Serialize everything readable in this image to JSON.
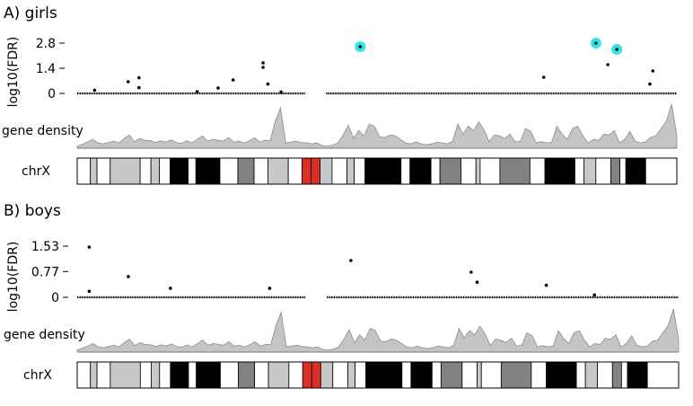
{
  "chart_data": [
    {
      "type": "scatter",
      "title": "A) girls",
      "ylabel": "log10(FDR)",
      "ylim": [
        0,
        2.8
      ],
      "yticks": [
        "2.8",
        "1.4",
        "0"
      ],
      "track_labels": {
        "density": "gene density",
        "ideogram": "chrX"
      },
      "highlight_color": "#2ee6e6",
      "points": [
        {
          "x": 0.029,
          "y": 0.18
        },
        {
          "x": 0.085,
          "y": 0.65
        },
        {
          "x": 0.103,
          "y": 0.87
        },
        {
          "x": 0.103,
          "y": 0.32
        },
        {
          "x": 0.2,
          "y": 0.1
        },
        {
          "x": 0.235,
          "y": 0.3
        },
        {
          "x": 0.26,
          "y": 0.75
        },
        {
          "x": 0.31,
          "y": 1.7
        },
        {
          "x": 0.31,
          "y": 1.45
        },
        {
          "x": 0.318,
          "y": 0.52
        },
        {
          "x": 0.34,
          "y": 0.08
        },
        {
          "x": 0.472,
          "y": 2.6,
          "highlight": true
        },
        {
          "x": 0.778,
          "y": 0.9
        },
        {
          "x": 0.865,
          "y": 2.8,
          "highlight": true
        },
        {
          "x": 0.885,
          "y": 1.6
        },
        {
          "x": 0.9,
          "y": 2.45,
          "highlight": true
        },
        {
          "x": 0.955,
          "y": 0.52
        },
        {
          "x": 0.96,
          "y": 1.25
        }
      ]
    },
    {
      "type": "scatter",
      "title": "B) boys",
      "ylabel": "log10(FDR)",
      "ylim": [
        0,
        1.53
      ],
      "yticks": [
        "1.53",
        "0.77",
        "0"
      ],
      "track_labels": {
        "density": "gene density",
        "ideogram": "chrX"
      },
      "points": [
        {
          "x": 0.02,
          "y": 1.5
        },
        {
          "x": 0.02,
          "y": 0.18
        },
        {
          "x": 0.085,
          "y": 0.62
        },
        {
          "x": 0.155,
          "y": 0.27
        },
        {
          "x": 0.32,
          "y": 0.27
        },
        {
          "x": 0.455,
          "y": 1.1
        },
        {
          "x": 0.655,
          "y": 0.75
        },
        {
          "x": 0.665,
          "y": 0.45
        },
        {
          "x": 0.78,
          "y": 0.36
        },
        {
          "x": 0.86,
          "y": 0.07
        }
      ]
    }
  ],
  "gene_density": [
    0.05,
    0.09,
    0.14,
    0.2,
    0.12,
    0.1,
    0.13,
    0.16,
    0.12,
    0.22,
    0.3,
    0.15,
    0.22,
    0.18,
    0.17,
    0.13,
    0.17,
    0.14,
    0.19,
    0.13,
    0.11,
    0.17,
    0.12,
    0.2,
    0.28,
    0.16,
    0.2,
    0.18,
    0.16,
    0.24,
    0.14,
    0.16,
    0.12,
    0.17,
    0.24,
    0.14,
    0.18,
    0.17,
    0.62,
    0.92,
    0.12,
    0.14,
    0.16,
    0.13,
    0.12,
    0.1,
    0.12,
    0.06,
    0.05,
    0.07,
    0.12,
    0.3,
    0.52,
    0.22,
    0.4,
    0.28,
    0.55,
    0.5,
    0.26,
    0.24,
    0.3,
    0.28,
    0.2,
    0.12,
    0.1,
    0.14,
    0.1,
    0.08,
    0.1,
    0.14,
    0.12,
    0.1,
    0.16,
    0.55,
    0.32,
    0.5,
    0.4,
    0.6,
    0.42,
    0.15,
    0.3,
    0.28,
    0.22,
    0.32,
    0.14,
    0.16,
    0.45,
    0.38,
    0.12,
    0.15,
    0.12,
    0.14,
    0.5,
    0.32,
    0.2,
    0.45,
    0.5,
    0.28,
    0.12,
    0.2,
    0.18,
    0.32,
    0.3,
    0.4,
    0.12,
    0.2,
    0.38,
    0.16,
    0.12,
    0.14,
    0.25,
    0.28,
    0.45,
    0.62,
    1.0,
    0.3
  ],
  "ideogram_bands": [
    {
      "start": 0.0,
      "end": 0.022,
      "stain": "gneg"
    },
    {
      "start": 0.022,
      "end": 0.033,
      "stain": "gpos25"
    },
    {
      "start": 0.033,
      "end": 0.055,
      "stain": "gneg"
    },
    {
      "start": 0.055,
      "end": 0.105,
      "stain": "gpos25"
    },
    {
      "start": 0.105,
      "end": 0.123,
      "stain": "gneg"
    },
    {
      "start": 0.123,
      "end": 0.137,
      "stain": "gpos25"
    },
    {
      "start": 0.137,
      "end": 0.155,
      "stain": "gneg"
    },
    {
      "start": 0.155,
      "end": 0.185,
      "stain": "gpos100"
    },
    {
      "start": 0.185,
      "end": 0.198,
      "stain": "gneg"
    },
    {
      "start": 0.198,
      "end": 0.238,
      "stain": "gpos100"
    },
    {
      "start": 0.238,
      "end": 0.268,
      "stain": "gneg"
    },
    {
      "start": 0.268,
      "end": 0.295,
      "stain": "gpos75"
    },
    {
      "start": 0.295,
      "end": 0.318,
      "stain": "gneg"
    },
    {
      "start": 0.318,
      "end": 0.352,
      "stain": "gpos25"
    },
    {
      "start": 0.352,
      "end": 0.375,
      "stain": "gneg"
    },
    {
      "start": 0.375,
      "end": 0.39,
      "stain": "acen"
    },
    {
      "start": 0.39,
      "end": 0.405,
      "stain": "acen"
    },
    {
      "start": 0.405,
      "end": 0.425,
      "stain": "gpos25"
    },
    {
      "start": 0.425,
      "end": 0.45,
      "stain": "gneg"
    },
    {
      "start": 0.45,
      "end": 0.462,
      "stain": "gpos25"
    },
    {
      "start": 0.462,
      "end": 0.48,
      "stain": "gneg"
    },
    {
      "start": 0.48,
      "end": 0.54,
      "stain": "gpos100"
    },
    {
      "start": 0.54,
      "end": 0.555,
      "stain": "gneg"
    },
    {
      "start": 0.555,
      "end": 0.59,
      "stain": "gpos100"
    },
    {
      "start": 0.59,
      "end": 0.605,
      "stain": "gneg"
    },
    {
      "start": 0.605,
      "end": 0.64,
      "stain": "gpos75"
    },
    {
      "start": 0.64,
      "end": 0.665,
      "stain": "gneg"
    },
    {
      "start": 0.665,
      "end": 0.672,
      "stain": "gpos25"
    },
    {
      "start": 0.672,
      "end": 0.705,
      "stain": "gneg"
    },
    {
      "start": 0.705,
      "end": 0.755,
      "stain": "gpos75"
    },
    {
      "start": 0.755,
      "end": 0.78,
      "stain": "gneg"
    },
    {
      "start": 0.78,
      "end": 0.83,
      "stain": "gpos100"
    },
    {
      "start": 0.83,
      "end": 0.845,
      "stain": "gneg"
    },
    {
      "start": 0.845,
      "end": 0.865,
      "stain": "gpos25"
    },
    {
      "start": 0.865,
      "end": 0.89,
      "stain": "gneg"
    },
    {
      "start": 0.89,
      "end": 0.905,
      "stain": "gpos75"
    },
    {
      "start": 0.905,
      "end": 0.915,
      "stain": "gneg"
    },
    {
      "start": 0.915,
      "end": 0.948,
      "stain": "gpos100"
    },
    {
      "start": 0.948,
      "end": 1.0,
      "stain": "gneg"
    }
  ],
  "stain_colors": {
    "gneg": "#ffffff",
    "gpos25": "#c8c8c8",
    "gpos75": "#828282",
    "gpos100": "#000000",
    "acen": "#d92f27"
  },
  "density_fill": "#c4c4c4",
  "density_stroke": "#8c8c8c",
  "centromere_gap": [
    0.38,
    0.415
  ]
}
